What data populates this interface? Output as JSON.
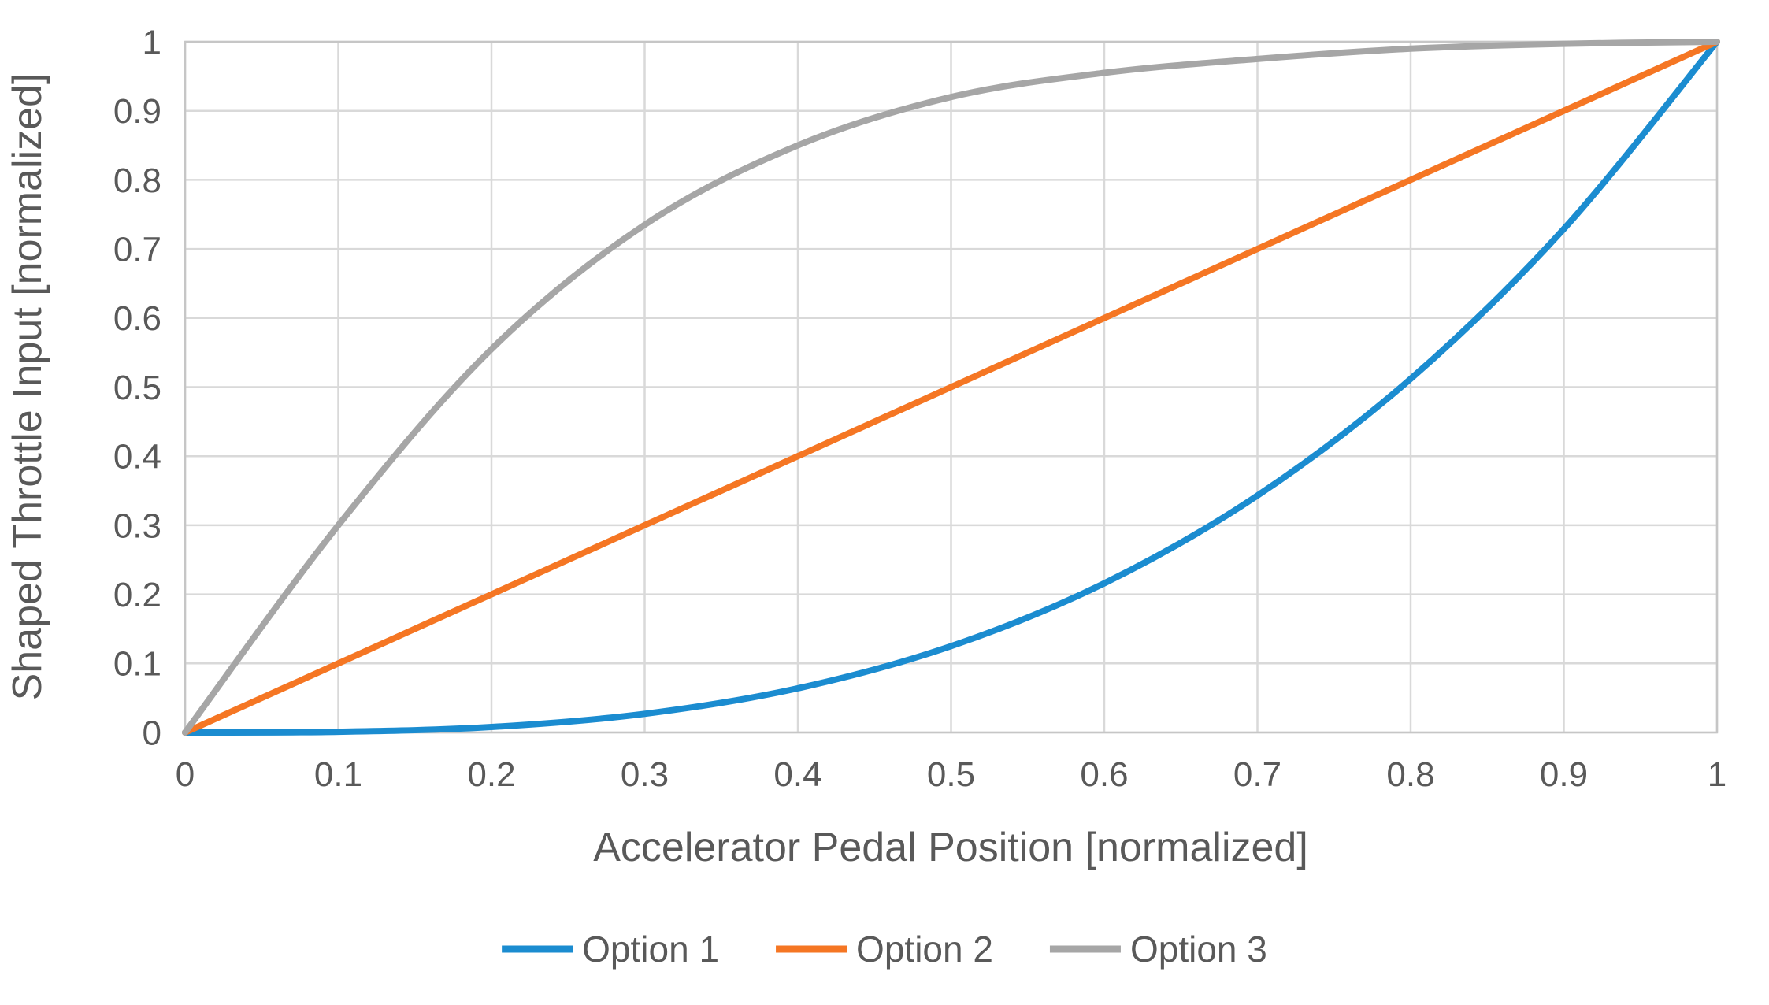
{
  "chart_data": {
    "type": "line",
    "title": "",
    "xlabel": "Accelerator Pedal Position [normalized]",
    "ylabel": "Shaped Throttle Input [normalized]",
    "x": [
      0,
      0.1,
      0.2,
      0.3,
      0.4,
      0.5,
      0.6,
      0.7,
      0.8,
      0.9,
      1
    ],
    "x_tick_labels": [
      "0",
      "0.1",
      "0.2",
      "0.3",
      "0.4",
      "0.5",
      "0.6",
      "0.7",
      "0.8",
      "0.9",
      "1"
    ],
    "y_ticks": [
      0,
      0.1,
      0.2,
      0.3,
      0.4,
      0.5,
      0.6,
      0.7,
      0.8,
      0.9,
      1
    ],
    "y_tick_labels": [
      "0",
      "0.1",
      "0.2",
      "0.3",
      "0.4",
      "0.5",
      "0.6",
      "0.7",
      "0.8",
      "0.9",
      "1"
    ],
    "xlim": [
      0,
      1
    ],
    "ylim": [
      0,
      1
    ],
    "grid": true,
    "legend_position": "bottom",
    "series": [
      {
        "name": "Option 1",
        "color": "#1B8CD0",
        "values": [
          0,
          0.001,
          0.008,
          0.027,
          0.064,
          0.125,
          0.216,
          0.343,
          0.512,
          0.729,
          1
        ]
      },
      {
        "name": "Option 2",
        "color": "#F57623",
        "values": [
          0,
          0.1,
          0.2,
          0.3,
          0.4,
          0.5,
          0.6,
          0.7,
          0.8,
          0.9,
          1
        ]
      },
      {
        "name": "Option 3",
        "color": "#A6A6A6",
        "values": [
          0,
          0.3,
          0.555,
          0.735,
          0.85,
          0.92,
          0.955,
          0.975,
          0.99,
          0.997,
          1
        ]
      }
    ]
  },
  "colors": {
    "background": "#FFFFFF",
    "text": "#595959",
    "gridline": "#D9D9D9",
    "frame": "#C6C6C6"
  }
}
